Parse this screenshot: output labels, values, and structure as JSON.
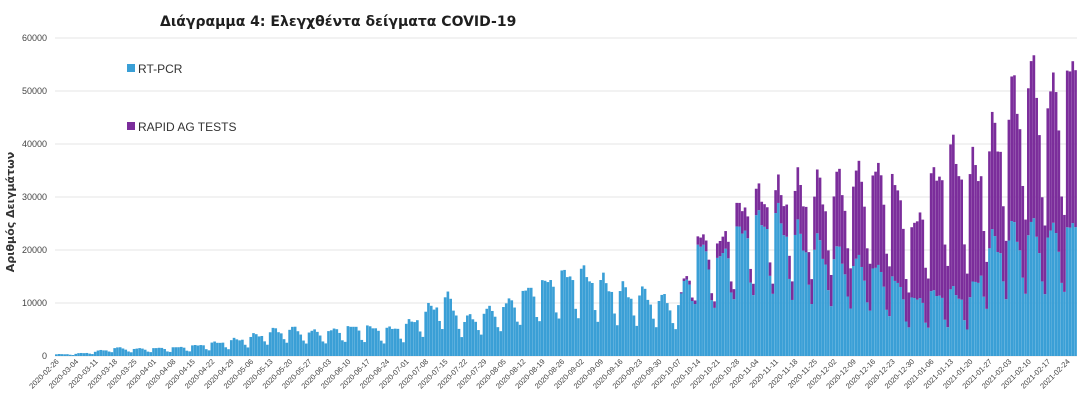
{
  "chart_data": {
    "type": "bar",
    "stacked": true,
    "title": "Διάγραμμα 4: Ελεγχθέντα δείγματα COVID-19",
    "ylabel": "Αριθμός Δειγμάτων",
    "xlabel": "",
    "ylim": [
      0,
      60000
    ],
    "yticks": [
      0,
      10000,
      20000,
      30000,
      40000,
      50000,
      60000
    ],
    "grid": true,
    "legend_position": "top-left",
    "x_start": "2020-02-26",
    "x_end": "2021-02-27",
    "x_tick_labels": [
      "2020-02-26",
      "2020-03-04",
      "2020-03-11",
      "2020-03-18",
      "2020-03-25",
      "2020-04-01",
      "2020-04-08",
      "2020-04-15",
      "2020-04-22",
      "2020-04-29",
      "2020-05-06",
      "2020-05-13",
      "2020-05-20",
      "2020-05-27",
      "2020-06-03",
      "2020-06-10",
      "2020-06-17",
      "2020-06-24",
      "2020-07-01",
      "2020-07-08",
      "2020-07-15",
      "2020-07-22",
      "2020-07-29",
      "2020-08-05",
      "2020-08-12",
      "2020-08-19",
      "2020-08-26",
      "2020-09-02",
      "2020-09-09",
      "2020-09-16",
      "2020-09-23",
      "2020-09-30",
      "2020-10-07",
      "2020-10-14",
      "2020-10-21",
      "2020-10-28",
      "2020-11-04",
      "2020-11-11",
      "2020-11-18",
      "2020-11-25",
      "2020-12-02",
      "2020-12-09",
      "2020-12-16",
      "2020-12-23",
      "2020-12-30",
      "2021-01-06",
      "2021-01-13",
      "2021-01-20",
      "2021-01-27",
      "2021-02-03",
      "2021-02-10",
      "2021-02-17",
      "2021-02-24"
    ],
    "series": [
      {
        "name": "RT-PCR",
        "color": "#3a9fd6",
        "weekly_values": [
          300,
          400,
          800,
          1500,
          1300,
          1400,
          1500,
          1800,
          2300,
          2800,
          3500,
          4500,
          5000,
          4400,
          4500,
          5200,
          5200,
          4800,
          5600,
          8000,
          11000,
          6500,
          8000,
          9000,
          11500,
          13000,
          14500,
          15000,
          13500,
          12000,
          11500,
          10500,
          9500,
          20000,
          17000,
          22000,
          24000,
          25000,
          22000,
          20000,
          18500,
          17000,
          16000,
          14000,
          10000,
          11000,
          11500,
          10500,
          20000,
          22000,
          23000,
          22000,
          23000
        ]
      },
      {
        "name": "RAPID AG TESTS",
        "color": "#7b2d9b",
        "weekly_values": [
          0,
          0,
          0,
          0,
          0,
          0,
          0,
          0,
          0,
          0,
          0,
          0,
          0,
          0,
          0,
          0,
          0,
          0,
          0,
          0,
          0,
          0,
          0,
          0,
          0,
          0,
          0,
          0,
          0,
          0,
          0,
          0,
          0,
          1500,
          2500,
          4000,
          4500,
          4000,
          8000,
          10000,
          12000,
          15000,
          17000,
          18000,
          12000,
          20000,
          25000,
          22000,
          18000,
          23000,
          28000,
          24000,
          28000
        ]
      }
    ]
  }
}
